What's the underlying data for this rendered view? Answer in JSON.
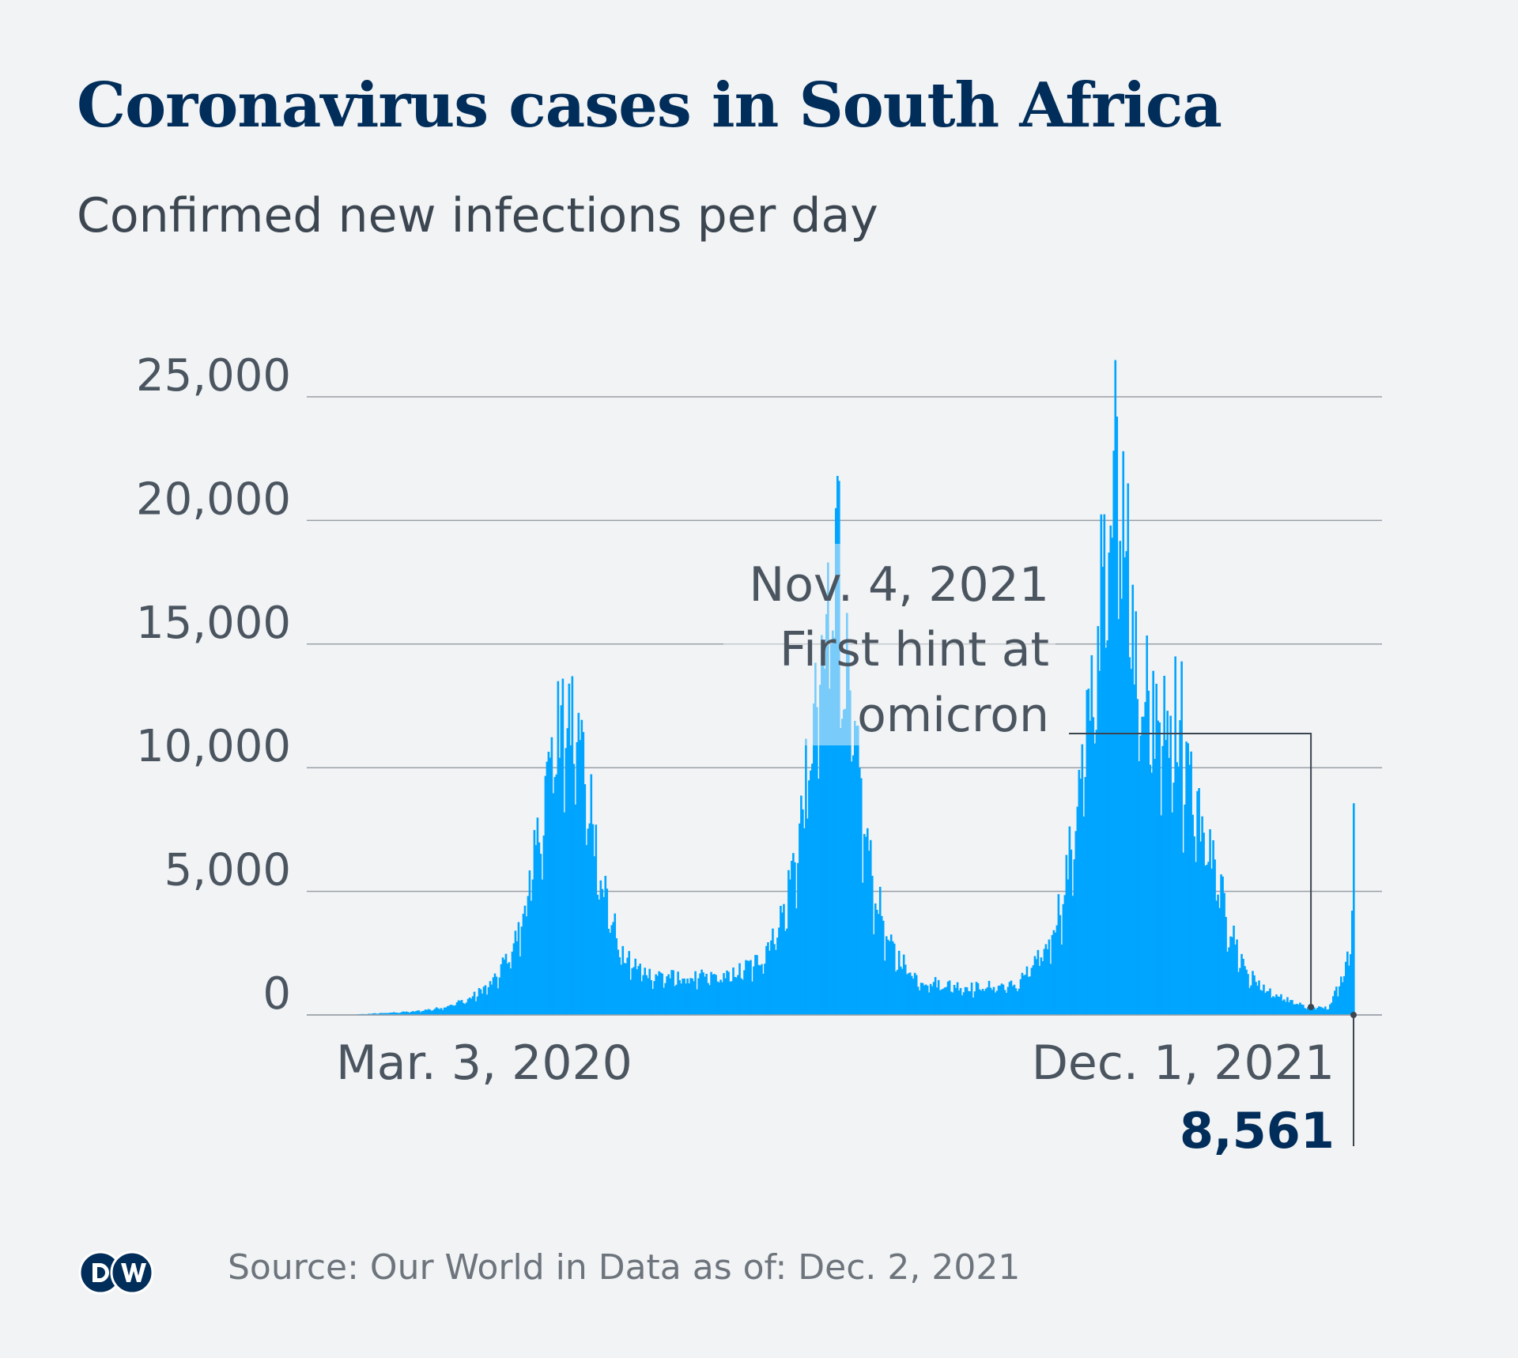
{
  "title": "Coronavirus cases in South Africa",
  "subtitle": "Confirmed new infections per day",
  "source": "Source: Our World in Data as of: Dec. 2, 2021",
  "logo_text": "DW",
  "colors": {
    "bar": "#00a5ff",
    "annotation_overlay": "#f1f3f5",
    "grid": "#9aa0a7",
    "title": "#002d5a",
    "text": "#4b5560",
    "highlight_value": "#002d5a"
  },
  "chart_data": {
    "type": "bar",
    "x_start": "2020-03-03",
    "x_end": "2021-12-01",
    "ylim": [
      0,
      25000
    ],
    "yticks": [
      0,
      5000,
      10000,
      15000,
      20000,
      25000
    ],
    "ytick_labels": [
      "0",
      "5,000",
      "10,000",
      "15,000",
      "20,000",
      "25,000"
    ],
    "xtick_labels": [
      "Mar. 3, 2020",
      "Dec. 1, 2021"
    ],
    "grid": true,
    "profile": [
      [
        "2020-03-03",
        0
      ],
      [
        "2020-03-25",
        80
      ],
      [
        "2020-04-15",
        150
      ],
      [
        "2020-05-01",
        300
      ],
      [
        "2020-05-20",
        700
      ],
      [
        "2020-06-05",
        1500
      ],
      [
        "2020-06-20",
        3500
      ],
      [
        "2020-07-01",
        7000
      ],
      [
        "2020-07-10",
        11000
      ],
      [
        "2020-07-20",
        13000
      ],
      [
        "2020-07-28",
        12000
      ],
      [
        "2020-08-05",
        9000
      ],
      [
        "2020-08-15",
        5000
      ],
      [
        "2020-08-25",
        2500
      ],
      [
        "2020-09-10",
        1800
      ],
      [
        "2020-10-01",
        1600
      ],
      [
        "2020-11-01",
        1700
      ],
      [
        "2020-11-20",
        2400
      ],
      [
        "2020-12-05",
        4500
      ],
      [
        "2020-12-15",
        8000
      ],
      [
        "2020-12-25",
        13000
      ],
      [
        "2021-01-03",
        18000
      ],
      [
        "2021-01-10",
        17000
      ],
      [
        "2021-01-20",
        11000
      ],
      [
        "2021-01-30",
        6000
      ],
      [
        "2021-02-10",
        3000
      ],
      [
        "2021-03-01",
        1500
      ],
      [
        "2021-04-01",
        1200
      ],
      [
        "2021-05-01",
        1300
      ],
      [
        "2021-05-20",
        2800
      ],
      [
        "2021-06-01",
        5500
      ],
      [
        "2021-06-15",
        12000
      ],
      [
        "2021-06-25",
        19000
      ],
      [
        "2021-07-05",
        21500
      ],
      [
        "2021-07-15",
        17000
      ],
      [
        "2021-07-25",
        13000
      ],
      [
        "2021-08-05",
        12500
      ],
      [
        "2021-08-20",
        10000
      ],
      [
        "2021-09-01",
        7000
      ],
      [
        "2021-09-15",
        3500
      ],
      [
        "2021-09-25",
        1800
      ],
      [
        "2021-10-10",
        900
      ],
      [
        "2021-11-01",
        350
      ],
      [
        "2021-11-15",
        300
      ],
      [
        "2021-11-25",
        1800
      ],
      [
        "2021-11-28",
        3000
      ],
      [
        "2021-11-30",
        4400
      ],
      [
        "2021-12-01",
        8561
      ]
    ],
    "highlights": [
      [
        "2021-01-08",
        21800
      ],
      [
        "2021-01-09",
        21600
      ],
      [
        "2021-01-07",
        20500
      ],
      [
        "2021-01-02",
        18300
      ],
      [
        "2020-07-24",
        13700
      ],
      [
        "2020-07-18",
        13600
      ],
      [
        "2020-07-15",
        13500
      ],
      [
        "2020-07-22",
        13400
      ],
      [
        "2021-07-03",
        26485
      ],
      [
        "2021-07-04",
        24200
      ],
      [
        "2021-07-08",
        22800
      ],
      [
        "2021-07-11",
        21500
      ],
      [
        "2021-07-01",
        19300
      ],
      [
        "2021-06-29",
        18700
      ],
      [
        "2021-07-14",
        17400
      ],
      [
        "2021-08-10",
        14500
      ],
      [
        "2021-08-14",
        14300
      ],
      [
        "2020-12-31",
        14000
      ]
    ],
    "annotation": {
      "date": "2021-11-04",
      "lines": [
        "Nov. 4, 2021",
        "First hint at",
        "omicron"
      ]
    },
    "last_value_label": "8,561"
  }
}
